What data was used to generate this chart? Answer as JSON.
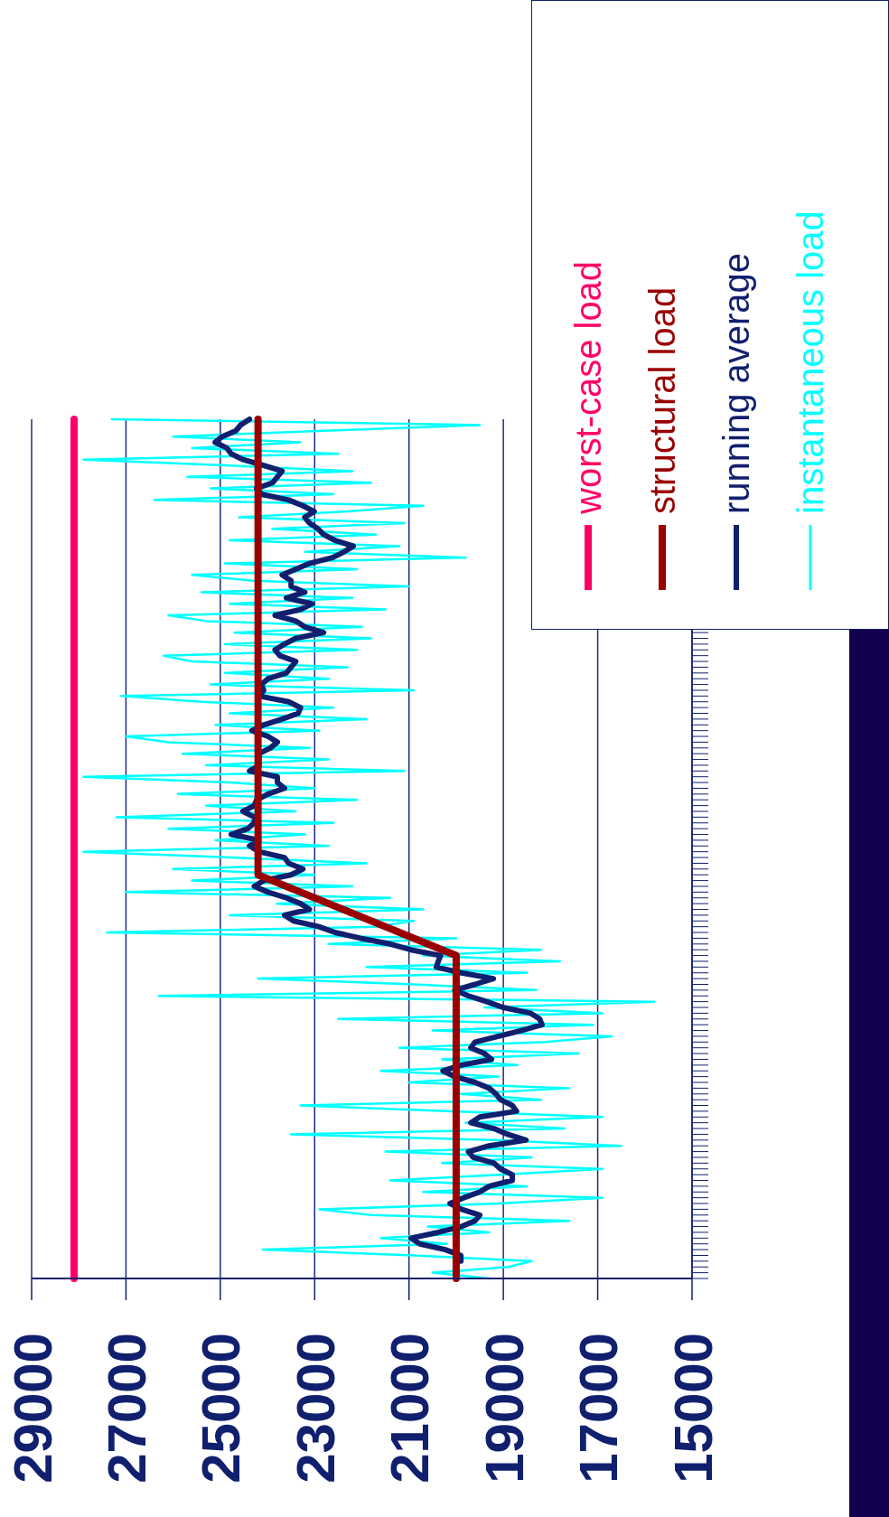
{
  "chart_data": {
    "type": "line",
    "orientation": "horizontal",
    "categories": [
      null,
      null,
      null,
      null,
      null,
      null,
      null,
      null,
      null,
      null,
      null,
      null,
      null,
      null,
      null,
      null,
      null,
      null,
      null,
      null,
      null,
      null,
      null,
      null,
      null,
      null,
      null,
      null,
      null,
      null,
      null,
      null,
      null,
      null,
      null,
      null,
      null,
      null,
      null,
      null,
      null,
      null,
      null,
      null,
      null,
      null,
      null,
      null,
      null,
      null,
      null,
      null,
      null,
      null,
      null,
      null,
      null,
      null,
      null,
      null,
      null,
      null,
      null,
      null,
      null,
      null,
      null,
      null,
      null,
      null,
      null,
      null,
      null,
      null,
      null,
      null,
      null,
      null,
      null,
      null,
      null,
      null,
      null,
      null,
      null,
      null,
      null,
      null,
      null,
      null,
      null,
      null,
      null,
      null,
      null,
      null,
      null,
      null,
      null,
      null,
      null,
      null,
      null,
      null,
      null,
      null,
      null,
      null,
      null,
      null,
      null,
      null,
      null,
      null,
      null,
      null,
      null,
      null,
      null,
      null,
      null,
      null,
      null,
      null,
      null,
      null,
      null,
      null,
      null,
      null,
      null,
      null,
      null,
      null,
      null,
      null,
      null,
      null,
      null,
      null,
      null,
      null,
      null,
      null,
      null,
      null,
      null,
      null,
      null,
      null
    ],
    "series": [
      {
        "name": "worst-case load",
        "color": "#ff0066",
        "values": [
          28100,
          28100,
          28100,
          28100,
          28100,
          28100,
          28100,
          28100,
          28100,
          28100,
          28100,
          28100,
          28100,
          28100,
          28100,
          28100,
          28100,
          28100,
          28100,
          28100,
          28100,
          28100,
          28100,
          28100,
          28100,
          28100,
          28100,
          28100,
          28100,
          28100,
          28100,
          28100,
          28100,
          28100,
          28100,
          28100,
          28100,
          28100,
          28100,
          28100,
          28100,
          28100,
          28100,
          28100,
          28100,
          28100,
          28100,
          28100,
          28100,
          28100,
          28100,
          28100,
          28100,
          28100,
          28100,
          28100,
          28100,
          28100,
          28100,
          28100,
          28100,
          28100,
          28100,
          28100,
          28100,
          28100,
          28100,
          28100,
          28100,
          28100,
          28100,
          28100,
          28100,
          28100,
          28100,
          28100,
          28100,
          28100,
          28100,
          28100,
          28100,
          28100,
          28100,
          28100,
          28100,
          28100,
          28100,
          28100,
          28100,
          28100,
          28100,
          28100,
          28100,
          28100,
          28100,
          28100,
          28100,
          28100,
          28100,
          28100,
          28100,
          28100,
          28100,
          28100,
          28100,
          28100,
          28100,
          28100,
          28100,
          28100,
          28100,
          28100,
          28100,
          28100,
          28100,
          28100,
          28100,
          28100,
          28100,
          28100,
          28100,
          28100,
          28100,
          28100,
          28100,
          28100,
          28100,
          28100,
          28100,
          28100,
          28100,
          28100,
          28100,
          28100,
          28100,
          28100,
          28100,
          28100,
          28100,
          28100,
          28100,
          28100,
          28100,
          28100,
          28100,
          28100,
          28100,
          28100,
          28100,
          28100
        ]
      },
      {
        "name": "structural load",
        "color": "#990000",
        "values": [
          24200,
          24200,
          24200,
          24200,
          24200,
          24200,
          24200,
          24200,
          24200,
          24200,
          24200,
          24200,
          24200,
          24200,
          24200,
          24200,
          24200,
          24200,
          24200,
          24200,
          24200,
          24200,
          24200,
          24200,
          24200,
          24200,
          24200,
          24200,
          24200,
          24200,
          24200,
          24200,
          24200,
          24200,
          24200,
          24200,
          24200,
          24200,
          24200,
          24200,
          24200,
          24200,
          24200,
          24200,
          24200,
          24200,
          24200,
          24200,
          24200,
          24200,
          24200,
          24200,
          24200,
          24200,
          24200,
          24200,
          24200,
          24200,
          24200,
          24200,
          24200,
          24200,
          24200,
          24200,
          24200,
          24200,
          24200,
          24200,
          24200,
          24200,
          24200,
          24200,
          24200,
          24200,
          24200,
          24200,
          24200,
          24200,
          24200,
          24200,
          23900,
          23600,
          23300,
          23000,
          22700,
          22400,
          22100,
          21800,
          21500,
          21200,
          20900,
          20600,
          20300,
          20000,
          20000,
          20000,
          20000,
          20000,
          20000,
          20000,
          20000,
          20000,
          20000,
          20000,
          20000,
          20000,
          20000,
          20000,
          20000,
          20000,
          20000,
          20000,
          20000,
          20000,
          20000,
          20000,
          20000,
          20000,
          20000,
          20000,
          20000,
          20000,
          20000,
          20000,
          20000,
          20000,
          20000,
          20000,
          20000,
          20000,
          20000,
          20000,
          20000,
          20000,
          20000,
          20000,
          20000,
          20000,
          20000,
          20000,
          20000,
          20000,
          20000,
          20000,
          20000,
          20000,
          20000,
          20000,
          20000,
          20000
        ]
      },
      {
        "name": "running average",
        "color": "#10206e",
        "values": [
          24380,
          24570,
          24670,
          24960,
          25110,
          24860,
          24770,
          24520,
          24080,
          23690,
          23790,
          23890,
          24230,
          24130,
          23550,
          23250,
          23010,
          23210,
          23110,
          22930,
          22810,
          22570,
          22180,
          22380,
          22620,
          23110,
          23400,
          23690,
          23500,
          23500,
          23210,
          23600,
          23060,
          23300,
          23840,
          23400,
          23210,
          22810,
          23400,
          23640,
          23840,
          23740,
          23400,
          23500,
          23600,
          23990,
          24130,
          24080,
          24180,
          23550,
          23300,
          23350,
          23690,
          24080,
          24330,
          23990,
          23790,
          23940,
          24180,
          24180,
          24180,
          24380,
          23790,
          23790,
          23640,
          23990,
          24230,
          24280,
          24520,
          24280,
          24280,
          24420,
          24770,
          24180,
          24380,
          24180,
          23640,
          23550,
          23250,
          23500,
          24080,
          24280,
          23990,
          23600,
          23300,
          23110,
          23640,
          23450,
          22910,
          22570,
          22030,
          21400,
          20960,
          20330,
          20380,
          20420,
          19890,
          19210,
          19600,
          20030,
          19740,
          19350,
          19010,
          18420,
          18230,
          18180,
          18620,
          19100,
          19600,
          19690,
          19400,
          19250,
          19890,
          20280,
          20030,
          19600,
          19300,
          19160,
          19060,
          18810,
          18720,
          19500,
          19690,
          19200,
          18910,
          18520,
          19300,
          19740,
          19640,
          19200,
          19060,
          18810,
          18810,
          19300,
          19500,
          19840,
          20130,
          19890,
          19500,
          19600,
          19890,
          20380,
          20960,
          20770,
          20230,
          19900,
          19900,
          null,
          null,
          null
        ]
      },
      {
        "name": "instantaneous load",
        "color": "#00ffff",
        "values": [
          27300,
          19500,
          22800,
          26000,
          23300,
          25600,
          22500,
          27900,
          24900,
          22200,
          25700,
          21800,
          25200,
          22600,
          26400,
          20700,
          22300,
          24600,
          21100,
          23900,
          21700,
          24800,
          21200,
          23200,
          19800,
          24900,
          22100,
          25600,
          24300,
          21000,
          25400,
          22200,
          24800,
          21500,
          26100,
          25300,
          22000,
          24700,
          21800,
          24900,
          22100,
          26200,
          25600,
          22300,
          24900,
          22700,
          25200,
          20900,
          27100,
          25400,
          22600,
          24800,
          21900,
          25100,
          22900,
          27000,
          26100,
          23100,
          25800,
          22700,
          25300,
          21100,
          27900,
          24800,
          23000,
          25900,
          22100,
          25300,
          23400,
          27200,
          22600,
          26100,
          23200,
          25100,
          22700,
          27900,
          24800,
          21900,
          26000,
          23000,
          25600,
          22200,
          27000,
          21400,
          23800,
          20700,
          24800,
          20900,
          21700,
          27400,
          20000,
          22700,
          18200,
          20700,
          17800,
          21900,
          18500,
          24200,
          20900,
          18300,
          26300,
          15800,
          19400,
          16900,
          22500,
          17100,
          20500,
          16700,
          18100,
          21200,
          17400,
          20300,
          18700,
          21600,
          19100,
          21000,
          17600,
          19900,
          18200,
          23300,
          20100,
          16900,
          19800,
          17700,
          23500,
          19200,
          16500,
          21500,
          18400,
          20300,
          16900,
          19000,
          21400,
          18500,
          20700,
          16900,
          19100,
          22900,
          21800,
          17600,
          20600,
          19300,
          21600,
          20200,
          24100,
          20900,
          18400,
          18900,
          20500,
          19300
        ]
      }
    ],
    "xlim": [
      29000,
      15000
    ],
    "xticks": [
      29000,
      27000,
      25000,
      23000,
      21000,
      19000,
      17000,
      15000
    ],
    "grid": "x",
    "legend": "top right",
    "tick_labels": "x"
  }
}
